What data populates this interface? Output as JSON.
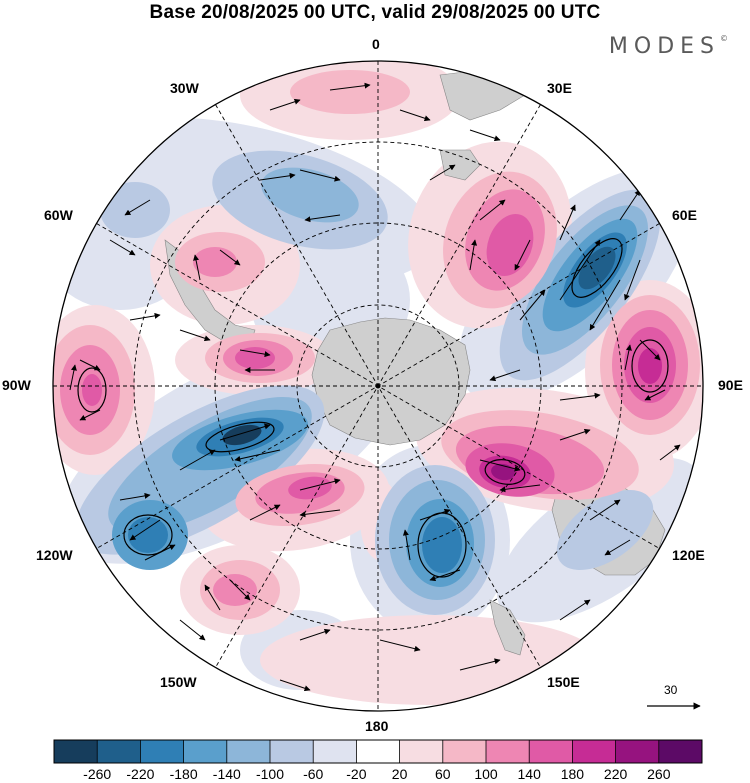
{
  "title": "Base 20/08/2025 00 UTC, valid 29/08/2025 00 UTC",
  "brand": "MODES",
  "brand_mark": "©",
  "longitude_labels": {
    "lon_0": "0",
    "lon_30e": "30E",
    "lon_60e": "60E",
    "lon_90e": "90E",
    "lon_120e": "120E",
    "lon_150e": "150E",
    "lon_180": "180",
    "lon_150w": "150W",
    "lon_120w": "120W",
    "lon_90w": "90W",
    "lon_60w": "60W",
    "lon_30w": "30W"
  },
  "reference_vector": {
    "label": "30"
  },
  "colorbar": {
    "labels": [
      "-260",
      "-220",
      "-180",
      "-140",
      "-100",
      "-60",
      "-20",
      "20",
      "60",
      "100",
      "140",
      "180",
      "220",
      "260"
    ],
    "colors": [
      "#163d5c",
      "#1f5f8b",
      "#2f7fb5",
      "#5a9fcc",
      "#8db6d9",
      "#b9c9e3",
      "#dfe3f0",
      "#ffffff",
      "#f7dde2",
      "#f5b8c7",
      "#ee86b3",
      "#e05aa6",
      "#c62c95",
      "#96137f",
      "#5c0a66"
    ]
  },
  "map_colors": {
    "land": "#cfcfcf",
    "ocean": "#ffffff",
    "neg_light": "#dfe3f0",
    "neg_mid": "#b9c9e3",
    "neg_strong": "#8db6d9",
    "neg_deep": "#5a9fcc",
    "neg_core": "#2f7fb5",
    "neg_extreme": "#1f5f8b",
    "neg_darkest": "#163d5c",
    "pos_light": "#f7dde2",
    "pos_mid": "#f5b8c7",
    "pos_strong": "#ee86b3",
    "pos_deep": "#e05aa6",
    "pos_core": "#c62c95",
    "pos_extreme": "#96137f"
  }
}
